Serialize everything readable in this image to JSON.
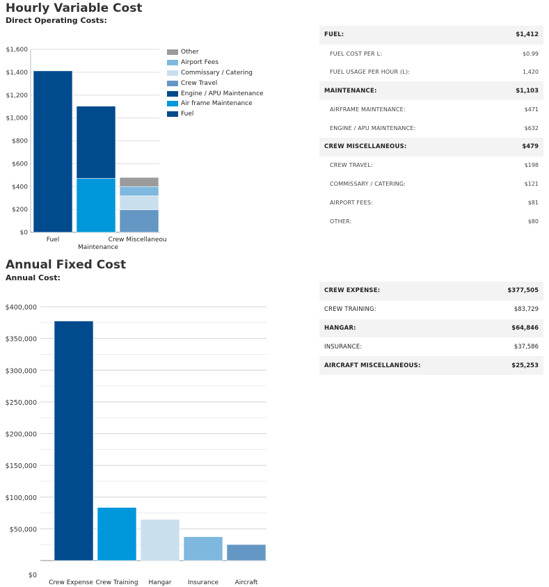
{
  "hourly": {
    "title": "Hourly Variable Cost",
    "subtitle": "Direct Operating Costs:",
    "table": [
      {
        "label": "FUEL:",
        "value": "$1,412",
        "kind": "head"
      },
      {
        "label": "FUEL COST PER L:",
        "value": "$0.99",
        "kind": "sub"
      },
      {
        "label": "FUEL USAGE PER HOUR (L):",
        "value": "1,420",
        "kind": "sub"
      },
      {
        "label": "MAINTENANCE:",
        "value": "$1,103",
        "kind": "head"
      },
      {
        "label": "AIRFRAME MAINTENANCE:",
        "value": "$471",
        "kind": "sub"
      },
      {
        "label": "ENGINE / APU MAINTENANCE:",
        "value": "$632",
        "kind": "sub"
      },
      {
        "label": "CREW MISCELLANEOUS:",
        "value": "$479",
        "kind": "head"
      },
      {
        "label": "CREW TRAVEL:",
        "value": "$198",
        "kind": "sub"
      },
      {
        "label": "COMMISSARY / CATERING:",
        "value": "$121",
        "kind": "sub"
      },
      {
        "label": "AIRPORT FEES:",
        "value": "$81",
        "kind": "sub"
      },
      {
        "label": "OTHER:",
        "value": "$80",
        "kind": "sub"
      }
    ]
  },
  "annual": {
    "title": "Annual Fixed Cost",
    "subtitle": "Annual Cost:",
    "table": [
      {
        "label": "CREW EXPENSE:",
        "value": "$377,505",
        "kind": "head"
      },
      {
        "label": "CREW TRAINING:",
        "value": "$83,729",
        "kind": "plain"
      },
      {
        "label": "HANGAR:",
        "value": "$64,846",
        "kind": "head"
      },
      {
        "label": "INSURANCE:",
        "value": "$37,586",
        "kind": "plain"
      },
      {
        "label": "AIRCRAFT MISCELLANEOUS:",
        "value": "$25,253",
        "kind": "head"
      }
    ]
  },
  "chart_data": [
    {
      "type": "bar",
      "stacked": true,
      "categories": [
        "Fuel",
        "Maintenance",
        "Crew Miscellaneous"
      ],
      "ylim": [
        0,
        1600
      ],
      "yticks": [
        0,
        200,
        400,
        600,
        800,
        1000,
        1200,
        1400,
        1600
      ],
      "ytick_labels": [
        "$0",
        "$200",
        "$400",
        "$600",
        "$800",
        "$1,000",
        "$1,200",
        "$1,400",
        "$1,600"
      ],
      "legend_position": "right",
      "legend_order": [
        "Other",
        "Airport Fees",
        "Commissary / Catering",
        "Crew Travel",
        "Engine / APU Maintenance",
        "Air frame Maintenance",
        "Fuel"
      ],
      "series": [
        {
          "name": "Fuel",
          "color": "#004b8d",
          "values": [
            1412,
            0,
            0
          ]
        },
        {
          "name": "Air frame Maintenance",
          "color": "#0097db",
          "values": [
            0,
            471,
            0
          ]
        },
        {
          "name": "Engine / APU Maintenance",
          "color": "#004b8d",
          "values": [
            0,
            632,
            0
          ]
        },
        {
          "name": "Crew Travel",
          "color": "#6497c4",
          "values": [
            0,
            0,
            198
          ]
        },
        {
          "name": "Commissary / Catering",
          "color": "#c9dfee",
          "values": [
            0,
            0,
            121
          ]
        },
        {
          "name": "Airport Fees",
          "color": "#7fb8de",
          "values": [
            0,
            0,
            81
          ]
        },
        {
          "name": "Other",
          "color": "#9b9b9b",
          "values": [
            0,
            0,
            80
          ]
        }
      ]
    },
    {
      "type": "bar",
      "categories": [
        "Crew Expense",
        "Crew Training",
        "Hangar",
        "Insurance",
        "Aircraft"
      ],
      "values": [
        377505,
        83729,
        64846,
        37586,
        25253
      ],
      "colors": [
        "#004b8d",
        "#0097db",
        "#c9dfee",
        "#7fb8de",
        "#6497c4"
      ],
      "ylim": [
        0,
        400000
      ],
      "yticks": [
        0,
        50000,
        100000,
        150000,
        200000,
        250000,
        300000,
        350000,
        400000
      ],
      "ytick_labels": [
        "$0",
        "$50,000",
        "$100,000",
        "$150,000",
        "$200,000",
        "$250,000",
        "$300,000",
        "$350,000",
        "$400,000"
      ]
    }
  ]
}
